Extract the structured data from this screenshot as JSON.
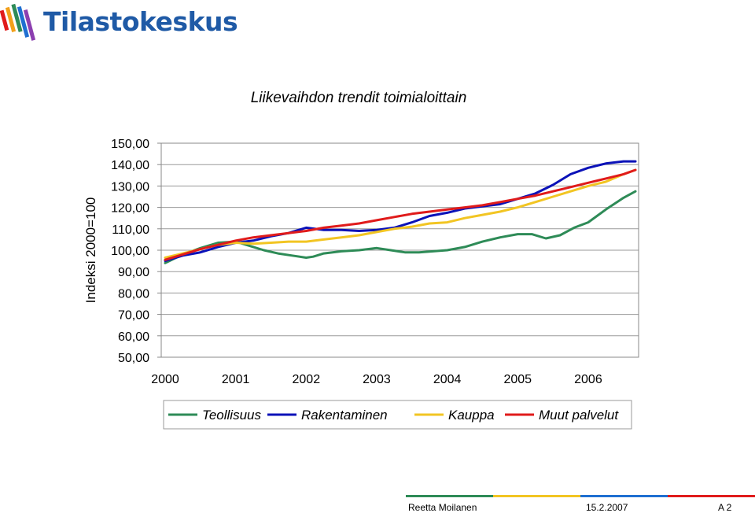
{
  "logo": {
    "text": "Tilastokeskus"
  },
  "chart_data": {
    "type": "line",
    "title": "Liikevaihdon trendit toimialoittain",
    "xlabel": "",
    "ylabel": "Indeksi 2000=100",
    "ylim": [
      50,
      150
    ],
    "xlim": [
      2000,
      2006.67
    ],
    "grid": true,
    "yticks": [
      "150,00",
      "140,00",
      "130,00",
      "120,00",
      "110,00",
      "100,00",
      "90,00",
      "80,00",
      "70,00",
      "60,00",
      "50,00"
    ],
    "xticks": [
      "2000",
      "2001",
      "2002",
      "2003",
      "2004",
      "2005",
      "2006"
    ],
    "legend_position": "bottom",
    "series": [
      {
        "name": "Teollisuus",
        "color": "#2e8b57",
        "x": [
          2000.0,
          2000.25,
          2000.5,
          2000.75,
          2001.0,
          2001.2,
          2001.4,
          2001.6,
          2001.8,
          2002.0,
          2002.1,
          2002.25,
          2002.5,
          2002.75,
          2003.0,
          2003.2,
          2003.4,
          2003.6,
          2003.8,
          2004.0,
          2004.25,
          2004.5,
          2004.75,
          2005.0,
          2005.2,
          2005.4,
          2005.6,
          2005.8,
          2006.0,
          2006.25,
          2006.5,
          2006.67
        ],
        "values": [
          94,
          98,
          101,
          103.5,
          104,
          102,
          100,
          98.5,
          97.5,
          96.5,
          97,
          98.5,
          99.5,
          100,
          101,
          100,
          99,
          99,
          99.5,
          100,
          101.5,
          104,
          106,
          107.5,
          107.5,
          105.5,
          107,
          110.5,
          113,
          119,
          124.5,
          127.5
        ]
      },
      {
        "name": "Rakentaminen",
        "color": "#0b12b8",
        "x": [
          2000.0,
          2000.25,
          2000.5,
          2000.75,
          2001.0,
          2001.25,
          2001.5,
          2001.75,
          2002.0,
          2002.25,
          2002.5,
          2002.75,
          2003.0,
          2003.25,
          2003.5,
          2003.75,
          2004.0,
          2004.25,
          2004.5,
          2004.75,
          2005.0,
          2005.25,
          2005.5,
          2005.75,
          2006.0,
          2006.25,
          2006.5,
          2006.67
        ],
        "values": [
          95,
          97.5,
          99,
          101.5,
          103.5,
          104.5,
          106.5,
          108,
          110.5,
          109.5,
          109.5,
          109,
          109.5,
          110.5,
          113,
          116,
          117.5,
          119.5,
          120.5,
          121.5,
          124,
          126.5,
          130.5,
          135.5,
          138.5,
          140.5,
          141.5,
          141.5
        ]
      },
      {
        "name": "Kauppa",
        "color": "#f2c523",
        "x": [
          2000.0,
          2000.25,
          2000.5,
          2000.75,
          2001.0,
          2001.25,
          2001.5,
          2001.75,
          2002.0,
          2002.25,
          2002.5,
          2002.75,
          2003.0,
          2003.25,
          2003.5,
          2003.75,
          2004.0,
          2004.25,
          2004.5,
          2004.75,
          2005.0,
          2005.25,
          2005.5,
          2005.75,
          2006.0,
          2006.25,
          2006.5,
          2006.67
        ],
        "values": [
          96.5,
          98.5,
          100.5,
          102.5,
          103.5,
          103,
          103.5,
          104,
          104,
          105,
          106,
          107,
          108.5,
          110,
          111,
          112.5,
          113,
          115,
          116.5,
          118,
          120,
          122.5,
          125,
          127.5,
          130,
          132,
          135.5,
          137.5
        ]
      },
      {
        "name": "Muut palvelut",
        "color": "#e01b1b",
        "x": [
          2000.0,
          2000.25,
          2000.5,
          2000.75,
          2001.0,
          2001.25,
          2001.5,
          2001.75,
          2002.0,
          2002.25,
          2002.5,
          2002.75,
          2003.0,
          2003.25,
          2003.5,
          2003.75,
          2004.0,
          2004.25,
          2004.5,
          2004.75,
          2005.0,
          2005.25,
          2005.5,
          2005.75,
          2006.0,
          2006.25,
          2006.5,
          2006.67
        ],
        "values": [
          95.5,
          98,
          100.5,
          102.5,
          104.5,
          106,
          107,
          108,
          109,
          110.5,
          111.5,
          112.5,
          114,
          115.5,
          117,
          118,
          119,
          120,
          121,
          122.5,
          124,
          125.5,
          127.5,
          129.5,
          131.5,
          133.5,
          135.5,
          137.5
        ]
      }
    ]
  },
  "footer": {
    "author": "Reetta Moilanen",
    "date": "15.2.2007",
    "page": "A 2",
    "stripe_colors": [
      "#2e8b57",
      "#f2c523",
      "#1f6fd1",
      "#e01b1b"
    ]
  }
}
